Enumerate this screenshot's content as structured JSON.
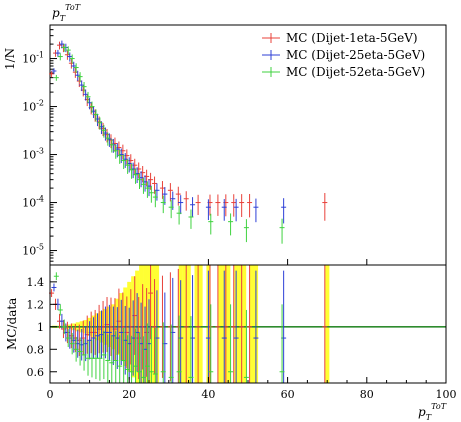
{
  "chart_data": {
    "type": "scatter",
    "title": "",
    "title_var": "p",
    "title_sub": "T",
    "title_sup": "ToT",
    "xlabel_var": "p",
    "xlabel_sub": "T",
    "xlabel_sup": "ToT",
    "top_ylabel": "1/N",
    "ratio_ylabel": "MC/data",
    "xlim": [
      0,
      100
    ],
    "x_ticks": [
      "0",
      "20",
      "40",
      "60",
      "80",
      "100"
    ],
    "top_ylim": [
      5e-06,
      0.5
    ],
    "top_log": true,
    "top_y_ticks": [
      "10^{-5}",
      "10^{-4}",
      "10^{-3}",
      "10^{-2}",
      "10^{-1}"
    ],
    "ratio_ylim": [
      0.5,
      1.55
    ],
    "ratio_y_ticks": [
      "0.6",
      "0.8",
      "1",
      "1.2",
      "1.4"
    ],
    "legend_position": "top-right",
    "colors": {
      "dijet_1eta_5gev": "#e8413a",
      "dijet_25eta_5gev": "#2d3fd6",
      "dijet_52eta_5gev": "#3fd23f",
      "reference_line": "#2e8b2e",
      "data_band": "#ffff33"
    },
    "series": [
      {
        "name": "MC (Dijet-1eta-5GeV)",
        "key": "dijet_1eta_5gev",
        "x": [
          1,
          2,
          3,
          4,
          5,
          6,
          7,
          8,
          9,
          10,
          11,
          12,
          13,
          14,
          15,
          16,
          17,
          18,
          19,
          20,
          21,
          22,
          23,
          24,
          25,
          26,
          27,
          29,
          31,
          33,
          35,
          38,
          41,
          43,
          45,
          47,
          49,
          51,
          70
        ],
        "y": [
          0.048,
          0.13,
          0.19,
          0.17,
          0.12,
          0.08,
          0.052,
          0.034,
          0.022,
          0.014,
          0.0095,
          0.0068,
          0.0048,
          0.0035,
          0.0026,
          0.002,
          0.0017,
          0.0014,
          0.0012,
          0.00095,
          0.00075,
          0.0006,
          0.0005,
          0.00042,
          0.00035,
          0.0003,
          0.00025,
          0.0002,
          0.00018,
          0.00015,
          0.00012,
          0.0001,
          0.0001,
          0.0001,
          0.0001,
          0.0001,
          0.0001,
          0.0001,
          0.0001
        ],
        "ratio": [
          1.3,
          1.2,
          1.05,
          0.98,
          0.95,
          0.92,
          0.9,
          0.88,
          0.9,
          0.93,
          0.95,
          0.95,
          0.98,
          1.0,
          1.02,
          1.0,
          0.98,
          1.05,
          1.0,
          0.95,
          1.0,
          1.1,
          0.9,
          1.0,
          0.95,
          1.3,
          1.0,
          1.0,
          1.0,
          1.0,
          1.0,
          1.0,
          1.0,
          1.0,
          1.0,
          1.0,
          1.0,
          1.0,
          1.0
        ]
      },
      {
        "name": "MC (Dijet-25eta-5GeV)",
        "key": "dijet_25eta_5gev",
        "x": [
          1,
          2,
          3,
          4,
          5,
          6,
          7,
          8,
          9,
          10,
          11,
          12,
          13,
          14,
          15,
          16,
          17,
          18,
          19,
          20,
          21,
          22,
          23,
          24,
          25,
          27,
          29,
          31,
          33,
          36,
          40,
          44,
          47,
          52,
          59
        ],
        "y": [
          0.055,
          0.13,
          0.2,
          0.17,
          0.11,
          0.07,
          0.045,
          0.028,
          0.018,
          0.012,
          0.008,
          0.0055,
          0.0038,
          0.0028,
          0.0021,
          0.0016,
          0.0013,
          0.001,
          0.0008,
          0.00065,
          0.0005,
          0.0004,
          0.00033,
          0.00027,
          0.00022,
          0.00018,
          0.00015,
          0.00012,
          0.0001,
          9e-05,
          8e-05,
          8e-05,
          8e-05,
          8e-05,
          8e-05
        ],
        "ratio": [
          1.35,
          1.2,
          1.05,
          0.95,
          0.9,
          0.88,
          0.85,
          0.84,
          0.85,
          0.88,
          0.9,
          0.92,
          0.93,
          0.95,
          0.95,
          0.92,
          0.9,
          0.95,
          0.88,
          0.85,
          0.9,
          0.95,
          0.85,
          0.8,
          0.85,
          0.9,
          0.85,
          0.95,
          0.9,
          0.9,
          0.9,
          0.9,
          0.9,
          0.9,
          0.9
        ]
      },
      {
        "name": "MC (Dijet-52eta-5GeV)",
        "key": "dijet_52eta_5gev",
        "x": [
          1,
          2,
          3,
          4,
          5,
          6,
          7,
          8,
          9,
          10,
          11,
          12,
          13,
          14,
          15,
          16,
          17,
          18,
          19,
          20,
          21,
          22,
          23,
          24,
          25,
          26,
          28,
          30,
          32,
          35,
          40,
          45,
          49,
          58
        ],
        "y": [
          0.04,
          0.11,
          0.17,
          0.15,
          0.1,
          0.065,
          0.042,
          0.026,
          0.016,
          0.01,
          0.0068,
          0.0046,
          0.0032,
          0.0022,
          0.0016,
          0.0012,
          0.00095,
          0.00075,
          0.0006,
          0.00048,
          0.00038,
          0.0003,
          0.00024,
          0.0002,
          0.00016,
          0.00013,
          0.0001,
          8e-05,
          6e-05,
          5e-05,
          4e-05,
          4e-05,
          3e-05,
          3e-05
        ],
        "ratio": [
          1.45,
          1.15,
          1.0,
          0.9,
          0.85,
          0.8,
          0.78,
          0.75,
          0.72,
          0.72,
          0.72,
          0.72,
          0.75,
          0.7,
          0.68,
          0.7,
          0.65,
          0.7,
          0.62,
          0.6,
          0.65,
          0.6,
          0.55,
          0.65,
          0.6,
          0.58,
          0.6,
          0.55,
          0.6,
          0.55,
          0.6,
          0.6,
          0.55,
          0.6
        ]
      }
    ],
    "data_band_ratio_halfwidth": {
      "x": [
        1,
        2,
        3,
        4,
        5,
        6,
        7,
        8,
        9,
        10,
        11,
        12,
        13,
        14,
        15,
        16,
        17,
        18,
        19,
        20,
        21,
        22,
        23,
        24,
        25,
        26,
        27,
        33,
        34,
        35,
        37,
        38,
        40,
        43,
        44,
        45,
        47,
        48,
        49,
        51,
        52,
        70
      ],
      "values": [
        0.01,
        0.01,
        0.01,
        0.02,
        0.02,
        0.03,
        0.04,
        0.05,
        0.06,
        0.08,
        0.1,
        0.12,
        0.14,
        0.16,
        0.18,
        0.2,
        0.25,
        0.3,
        0.35,
        0.4,
        0.45,
        0.5,
        0.55,
        0.6,
        0.6,
        0.6,
        0.6,
        0.6,
        0.6,
        0.6,
        0.6,
        0.6,
        0.6,
        0.6,
        0.6,
        0.6,
        0.6,
        0.6,
        0.6,
        0.6,
        0.6,
        0.6
      ]
    }
  }
}
